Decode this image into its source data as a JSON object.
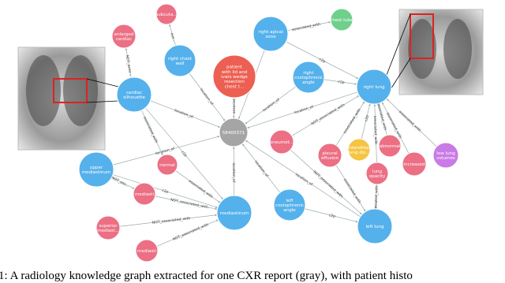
{
  "nodes": [
    {
      "label": [
        "58400371"
      ]
    },
    {
      "label": [
        "cardiac",
        "silhouette"
      ]
    },
    {
      "label": [
        "enlarged",
        "cardiac"
      ]
    },
    {
      "label": [
        "subcuta..."
      ]
    },
    {
      "label": [
        "right chest",
        "wall"
      ]
    },
    {
      "label": [
        "patient",
        "with ild and",
        "ivats wedge",
        "resection",
        "chest t..."
      ]
    },
    {
      "label": [
        "right apical",
        "zone"
      ]
    },
    {
      "label": [
        "chest tube"
      ]
    },
    {
      "label": [
        "right",
        "costophrenic",
        "angle"
      ]
    },
    {
      "label": [
        "right lung"
      ]
    },
    {
      "label": [
        "pneumot..."
      ]
    },
    {
      "label": [
        "pleural",
        "effusion"
      ]
    },
    {
      "label": [
        "interstitial",
        "lung dis..."
      ]
    },
    {
      "label": [
        "abnormal"
      ]
    },
    {
      "label": [
        "increased"
      ]
    },
    {
      "label": [
        "low lung",
        "volumes"
      ]
    },
    {
      "label": [
        "lung",
        "opacity"
      ]
    },
    {
      "label": [
        "left",
        "costophrenic",
        "angle"
      ]
    },
    {
      "label": [
        "left lung"
      ]
    },
    {
      "label": [
        "mediastinum"
      ]
    },
    {
      "label": [
        "upper",
        "mediastinum"
      ]
    },
    {
      "label": [
        "normal"
      ]
    },
    {
      "label": [
        "mediasti"
      ]
    },
    {
      "label": [
        "superior",
        "mediast..."
      ]
    },
    {
      "label": [
        "mediasti"
      ]
    }
  ],
  "edges": [
    {
      "label": "NOT_asso..."
    },
    {
      "label": "ass..."
    },
    {
      "label": "location_of"
    },
    {
      "label": "location_of"
    },
    {
      "label": "associat..."
    },
    {
      "label": "location_of"
    },
    {
      "label": "associated_with"
    },
    {
      "label": "c2p"
    },
    {
      "label": "c2p"
    },
    {
      "label": "location_of"
    },
    {
      "label": "location_of"
    },
    {
      "label": "NOT_associated_with"
    },
    {
      "label": "associated_with"
    },
    {
      "label": "associated_with"
    },
    {
      "label": "associated_with"
    },
    {
      "label": "associated_with"
    },
    {
      "label": "associated_with"
    },
    {
      "label": "c2p"
    },
    {
      "label": "location_of"
    },
    {
      "label": "location_of"
    },
    {
      "label": "NOT_associated_with"
    },
    {
      "label": "associated_with"
    },
    {
      "label": "associated_with"
    },
    {
      "label": "location_of"
    },
    {
      "label": "c2p"
    },
    {
      "label": "location_of"
    },
    {
      "label": "c2p"
    },
    {
      "label": "associated_with"
    },
    {
      "label": "associated_with"
    },
    {
      "label": "NOT_associated_with"
    },
    {
      "label": "NOT_associated_with"
    },
    {
      "label": "NOT_associated_with"
    },
    {
      "label": "NOT_ass..."
    },
    {
      "label": "c2p"
    }
  ],
  "caption": "1: A radiology knowledge graph extracted for one CXR report (gray), with patient histo"
}
